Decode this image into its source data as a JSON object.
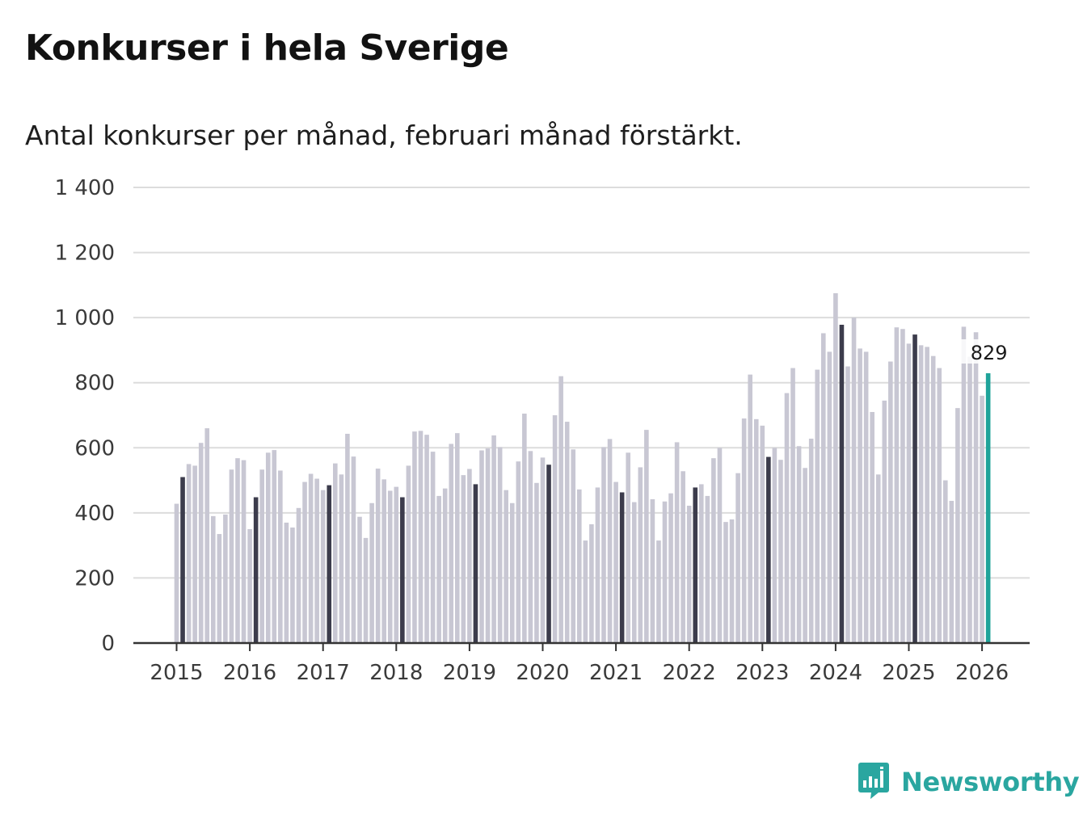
{
  "title": "Konkurser i hela Sverige",
  "subtitle": "Antal konkurser per månad, februari månad förstärkt.",
  "brand": {
    "name": "Newsworthy",
    "color": "#2aa6a0",
    "icon": "newsworthy-logo-icon"
  },
  "colors": {
    "regular": "#c8c7d3",
    "highlight": "#3c3c4c",
    "latest": "#1fa39a",
    "grid": "#dcdcdc",
    "axis": "#333333"
  },
  "chart_data": {
    "type": "bar",
    "title": "Konkurser i hela Sverige",
    "subtitle": "Antal konkurser per månad, februari månad förstärkt.",
    "xlabel": "",
    "ylabel": "",
    "ylim": [
      0,
      1400
    ],
    "yticks": [
      0,
      200,
      400,
      600,
      800,
      1000,
      1200,
      1400
    ],
    "ytick_labels": [
      "0",
      "200",
      "400",
      "600",
      "800",
      "1 000",
      "1 200",
      "1 400"
    ],
    "grid": true,
    "start": "2015-01",
    "highlight_month": "februari",
    "year_labels": [
      "2015",
      "2016",
      "2017",
      "2018",
      "2019",
      "2020",
      "2021",
      "2022",
      "2023",
      "2024",
      "2025",
      "2026"
    ],
    "values": [
      428,
      510,
      550,
      545,
      615,
      660,
      390,
      335,
      395,
      533,
      568,
      562,
      350,
      448,
      533,
      585,
      593,
      530,
      370,
      355,
      415,
      495,
      520,
      505,
      470,
      485,
      552,
      518,
      643,
      573,
      388,
      323,
      430,
      536,
      503,
      468,
      480,
      448,
      545,
      650,
      652,
      640,
      588,
      452,
      475,
      612,
      645,
      516,
      535,
      488,
      592,
      598,
      638,
      602,
      470,
      430,
      558,
      705,
      590,
      492,
      570,
      548,
      700,
      820,
      680,
      595,
      472,
      315,
      365,
      478,
      602,
      627,
      495,
      463,
      585,
      433,
      540,
      655,
      442,
      315,
      435,
      460,
      617,
      528,
      422,
      478,
      488,
      452,
      568,
      600,
      372,
      380,
      522,
      690,
      825,
      688,
      668,
      572,
      600,
      563,
      768,
      845,
      605,
      538,
      628,
      840,
      952,
      895,
      1075,
      978,
      850,
      1000,
      905,
      895,
      710,
      518,
      745,
      865,
      970,
      965,
      920,
      948,
      915,
      910,
      882,
      845,
      500,
      437,
      722,
      972,
      880,
      955,
      760,
      829
    ],
    "data_label": "829"
  }
}
